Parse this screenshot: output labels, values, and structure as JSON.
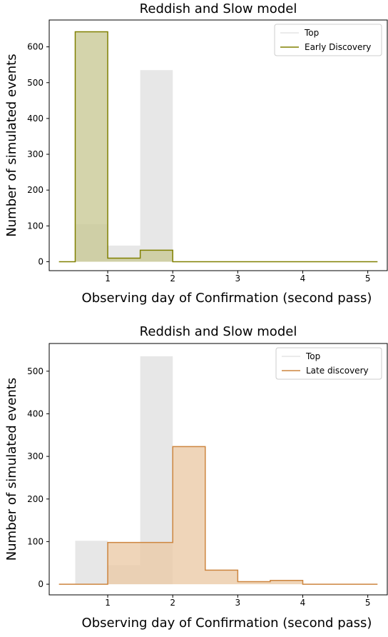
{
  "chart_data": [
    {
      "type": "histogram",
      "title": "Reddish and Slow model",
      "xlabel": "Observing day of Confirmation (second pass)",
      "ylabel": "Number of simulated events",
      "xlim": [
        0.1,
        5.3
      ],
      "ylim": [
        -25,
        675
      ],
      "xticks": [
        1,
        2,
        3,
        4,
        5
      ],
      "yticks": [
        0,
        100,
        200,
        300,
        400,
        500,
        600
      ],
      "legend_position": "top-right",
      "bin_edges": [
        0.5,
        1.0,
        1.5,
        2.0
      ],
      "background_series": {
        "name": "Top",
        "color": "#d3d3d3",
        "values": [
          105,
          45,
          535
        ]
      },
      "series": {
        "name": "Early Discovery",
        "color": "#808000",
        "fill": "#c9c996",
        "step_points": [
          [
            0.25,
            0
          ],
          [
            0.5,
            0
          ],
          [
            0.5,
            642
          ],
          [
            1.0,
            642
          ],
          [
            1.0,
            10
          ],
          [
            1.5,
            10
          ],
          [
            1.5,
            32
          ],
          [
            2.0,
            32
          ],
          [
            2.0,
            0
          ],
          [
            5.15,
            0
          ]
        ]
      }
    },
    {
      "type": "histogram",
      "title": "Reddish and Slow model",
      "xlabel": "Observing day of Confirmation (second pass)",
      "ylabel": "Number of simulated events",
      "xlim": [
        0.1,
        5.3
      ],
      "ylim": [
        -25,
        565
      ],
      "xticks": [
        1,
        2,
        3,
        4,
        5
      ],
      "yticks": [
        0,
        100,
        200,
        300,
        400,
        500
      ],
      "legend_position": "top-right",
      "bin_edges": [
        0.5,
        1.0,
        1.5,
        2.0
      ],
      "background_series": {
        "name": "Top",
        "color": "#d3d3d3",
        "values": [
          102,
          45,
          535
        ]
      },
      "series": {
        "name": "Late discovery",
        "color": "#cd853f",
        "fill": "#ebcba8",
        "step_points": [
          [
            0.25,
            0
          ],
          [
            1.0,
            0
          ],
          [
            1.0,
            98
          ],
          [
            2.0,
            98
          ],
          [
            2.0,
            323
          ],
          [
            2.5,
            323
          ],
          [
            2.5,
            33
          ],
          [
            3.0,
            33
          ],
          [
            3.0,
            6
          ],
          [
            3.5,
            6
          ],
          [
            3.5,
            9
          ],
          [
            4.0,
            9
          ],
          [
            4.0,
            0
          ],
          [
            5.15,
            0
          ]
        ]
      }
    }
  ]
}
